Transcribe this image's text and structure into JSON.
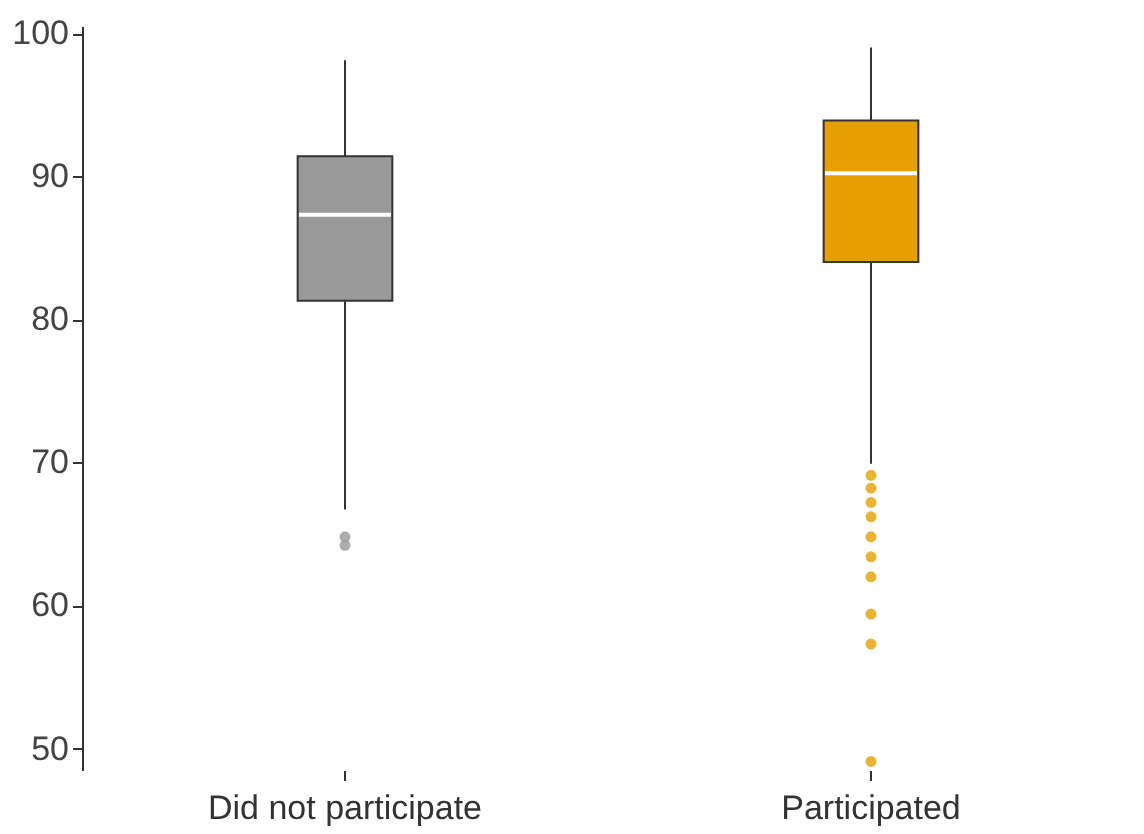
{
  "chart_data": {
    "type": "box",
    "categories": [
      "Did not participate",
      "Participated"
    ],
    "colors": [
      "#999999",
      "#e69f00"
    ],
    "boxes": [
      {
        "low": 66.7,
        "q1": 81.3,
        "median": 87.3,
        "q3": 91.4,
        "high": 98.1,
        "outliers": [
          64.8,
          64.2
        ]
      },
      {
        "low": 69.9,
        "q1": 84,
        "median": 90.2,
        "q3": 93.9,
        "high": 99,
        "outliers": [
          69.1,
          68.2,
          67.2,
          66.2,
          64.8,
          63.4,
          62,
          59.4,
          57.3,
          49.1
        ]
      }
    ],
    "ylim": [
      48.5,
      100.5
    ],
    "yticks": [
      50,
      60,
      70,
      80,
      90,
      100
    ],
    "grid": false
  }
}
